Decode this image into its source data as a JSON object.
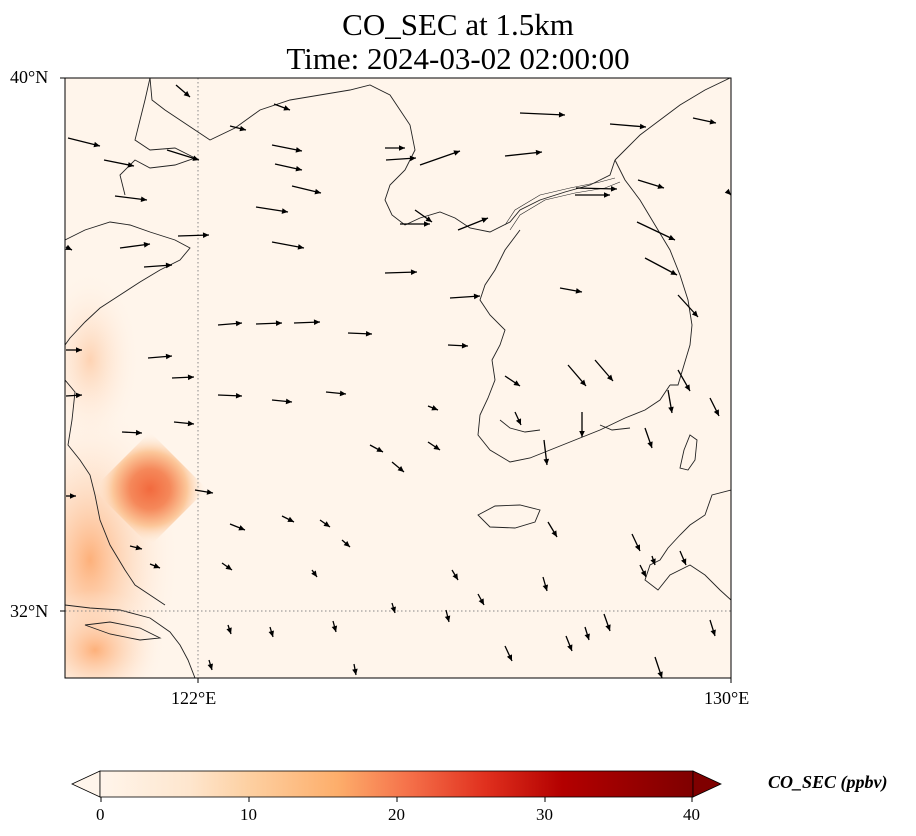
{
  "figure": {
    "title_line1": "CO_SEC at 1.5km",
    "title_line2": "Time: 2024-03-02 02:00:00"
  },
  "map": {
    "lon_range": [
      120,
      130
    ],
    "lat_range": [
      31,
      40
    ],
    "lat_ticks": [
      {
        "value": 40,
        "label": "40°N"
      },
      {
        "value": 32,
        "label": "32°N"
      }
    ],
    "lon_ticks": [
      {
        "value": 122,
        "label": "122°E"
      },
      {
        "value": 130,
        "label": "130°E"
      }
    ],
    "gridlines": {
      "lons": [
        122
      ],
      "lats": [
        32
      ],
      "style": "dotted"
    },
    "field": "CO_SEC concentration (ppbv), plume maximum near 121.3°E 33.8°N",
    "hotspot": {
      "lon": 121.3,
      "lat": 33.8,
      "value": 22
    }
  },
  "colorbar": {
    "label": "CO_SEC (ppbv)",
    "ticks": [
      "0",
      "10",
      "20",
      "30",
      "40"
    ],
    "vmin": 0,
    "vmax": 40,
    "colormap": [
      "#fff5eb",
      "#fee6ce",
      "#fdd0a2",
      "#fdae6b",
      "#fd8d3c",
      "#f16913",
      "#d94801",
      "#a63603",
      "#7f2704"
    ]
  }
}
